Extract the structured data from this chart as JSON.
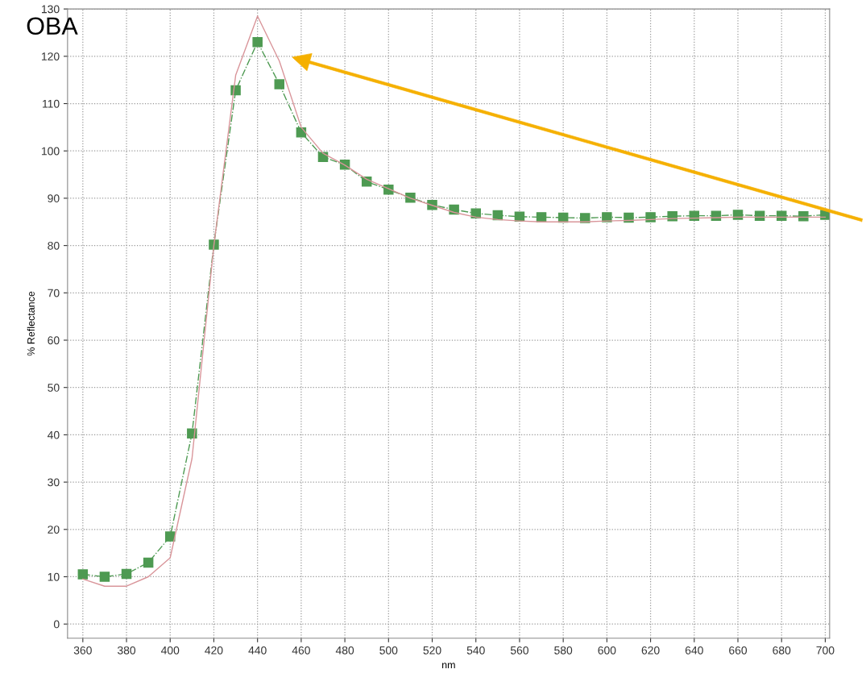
{
  "chart_data": {
    "type": "line",
    "xlabel": "nm",
    "ylabel": "% Reflectance",
    "x": [
      360,
      370,
      380,
      390,
      400,
      410,
      420,
      430,
      440,
      450,
      460,
      470,
      480,
      490,
      500,
      510,
      520,
      530,
      540,
      550,
      560,
      570,
      580,
      590,
      600,
      610,
      620,
      630,
      640,
      650,
      660,
      670,
      680,
      690,
      700
    ],
    "series": [
      {
        "color": "#4e9a52",
        "marker": "square",
        "line_style": "dashdot",
        "values": [
          10.5,
          10,
          10.6,
          13,
          18.5,
          40.3,
          80.2,
          112.8,
          123,
          114.1,
          103.9,
          98.7,
          97.1,
          93.5,
          91.8,
          90.1,
          88.6,
          87.6,
          86.8,
          86.4,
          86.1,
          86,
          85.9,
          85.8,
          86,
          85.9,
          86,
          86.2,
          86.3,
          86.3,
          86.5,
          86.3,
          86.3,
          86.2,
          86.5
        ]
      },
      {
        "color": "#d9959a",
        "marker": "none",
        "line_style": "solid",
        "values": [
          9.5,
          8,
          8,
          10,
          14,
          35,
          80,
          116,
          128.5,
          119,
          105,
          99.5,
          97,
          94,
          92,
          90,
          88.5,
          87,
          86,
          85.5,
          85.2,
          85,
          85,
          85,
          85.2,
          85.3,
          85.5,
          85.7,
          85.8,
          85.9,
          86,
          86,
          86,
          86,
          86
        ]
      }
    ],
    "xlim": [
      353,
      702
    ],
    "ylim": [
      -3,
      130
    ],
    "xticks": [
      360,
      380,
      400,
      420,
      440,
      460,
      480,
      500,
      520,
      540,
      560,
      580,
      600,
      620,
      640,
      660,
      680,
      700
    ],
    "yticks": [
      0,
      10,
      20,
      30,
      40,
      50,
      60,
      70,
      80,
      90,
      100,
      110,
      120,
      130
    ],
    "grid": true,
    "annotations": [
      "OBA"
    ]
  }
}
